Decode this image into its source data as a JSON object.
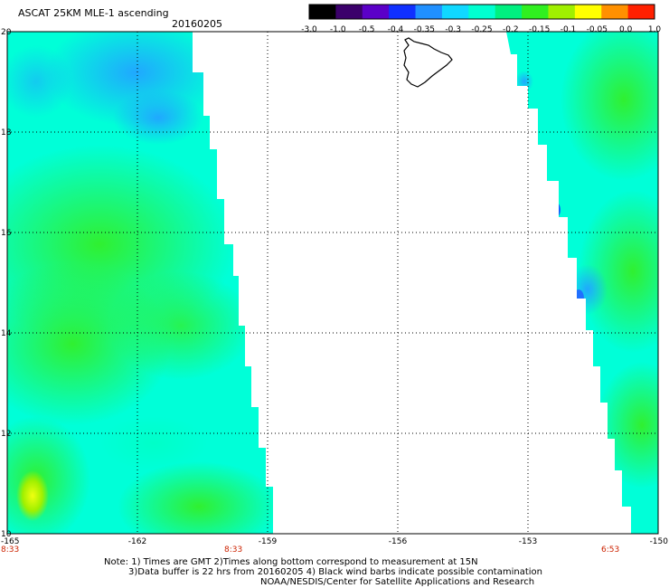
{
  "title": "ASCAT 25KM MLE-1 ascending",
  "date": "20160205",
  "colorbar": {
    "labels": [
      "-3.0",
      "-1.0",
      "-0.5",
      "-0.4",
      "-0.35",
      "-0.3",
      "-0.25",
      "-0.2",
      "-0.15",
      "-0.1",
      "-0.05",
      "0.0",
      "1.0"
    ],
    "colors": [
      "#000000",
      "#3b006b",
      "#5b00c8",
      "#1030ff",
      "#2090ff",
      "#10d8ff",
      "#00ffd0",
      "#00f080",
      "#30f020",
      "#a0f000",
      "#ffff00",
      "#ff9000",
      "#ff2000"
    ]
  },
  "map": {
    "lon_range": [
      -165,
      -150
    ],
    "lat_range": [
      10,
      20
    ],
    "lat_ticks": [
      "20",
      "18",
      "16",
      "14",
      "12",
      "10"
    ],
    "lon_ticks": [
      "-165",
      "-162",
      "-159",
      "-156",
      "-153",
      "-150"
    ],
    "time_labels": [
      "8:33",
      "8:33",
      "6:53"
    ],
    "time_label_color": "#cc2200",
    "land": "Hawaii (Big Island)"
  },
  "notes": {
    "line1": "Note: 1) Times are GMT 2)Times along bottom correspond to measurement at 15N",
    "line2": "3)Data buffer is 22 hrs from 20160205 4) Black wind barbs indicate possible contamination",
    "line3": "NOAA/NESDIS/Center for Satellite Applications and Research"
  }
}
